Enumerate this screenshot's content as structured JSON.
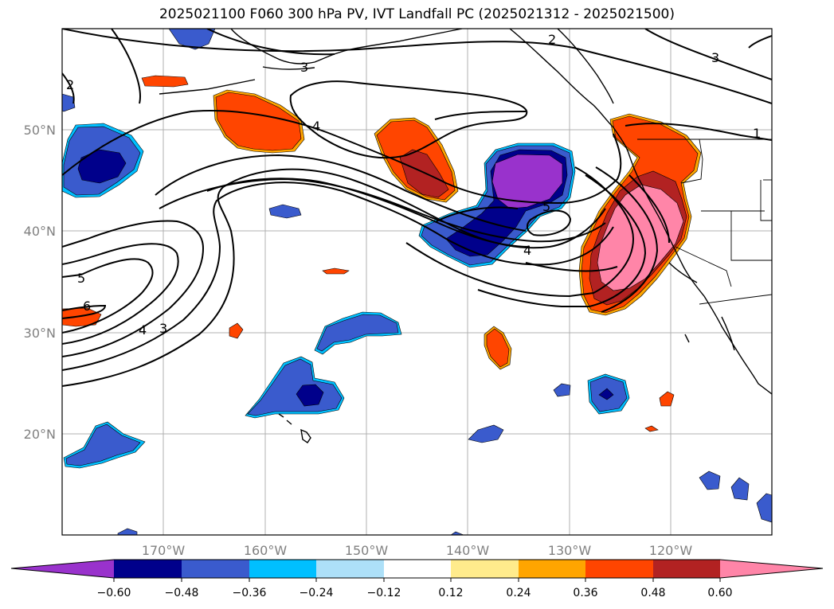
{
  "title": "2025021100 F060 300 hPa PV, IVT Landfall PC (2025021312 - 2025021500)",
  "map": {
    "lon_range": [
      -180,
      -110
    ],
    "lat_range": [
      10,
      60
    ],
    "lon_ticks": [
      {
        "value": -170,
        "label": "170°W"
      },
      {
        "value": -160,
        "label": "160°W"
      },
      {
        "value": -150,
        "label": "150°W"
      },
      {
        "value": -140,
        "label": "140°W"
      },
      {
        "value": -130,
        "label": "130°W"
      },
      {
        "value": -120,
        "label": "120°W"
      }
    ],
    "lat_ticks": [
      {
        "value": 50,
        "label": "50°N"
      },
      {
        "value": 40,
        "label": "40°N"
      },
      {
        "value": 30,
        "label": "30°N"
      },
      {
        "value": 20,
        "label": "20°N"
      }
    ],
    "grid": true
  },
  "contour_labels": [
    "2",
    "2",
    "3",
    "3",
    "4",
    "5",
    "4",
    "1",
    "5",
    "6",
    "4",
    "3"
  ],
  "colorbar": {
    "extend": "both",
    "colors": [
      "#9932CC",
      "#00008B",
      "#3A5BCD",
      "#00BFFF",
      "#ADE0F8",
      "#FFFFFF",
      "#FFEB8C",
      "#FFA500",
      "#FF4500",
      "#B22222",
      "#FF85A8"
    ],
    "tick_labels": [
      "−0.60",
      "−0.48",
      "−0.36",
      "−0.24",
      "−0.12",
      "0.12",
      "0.24",
      "0.36",
      "0.48",
      "0.60"
    ]
  }
}
